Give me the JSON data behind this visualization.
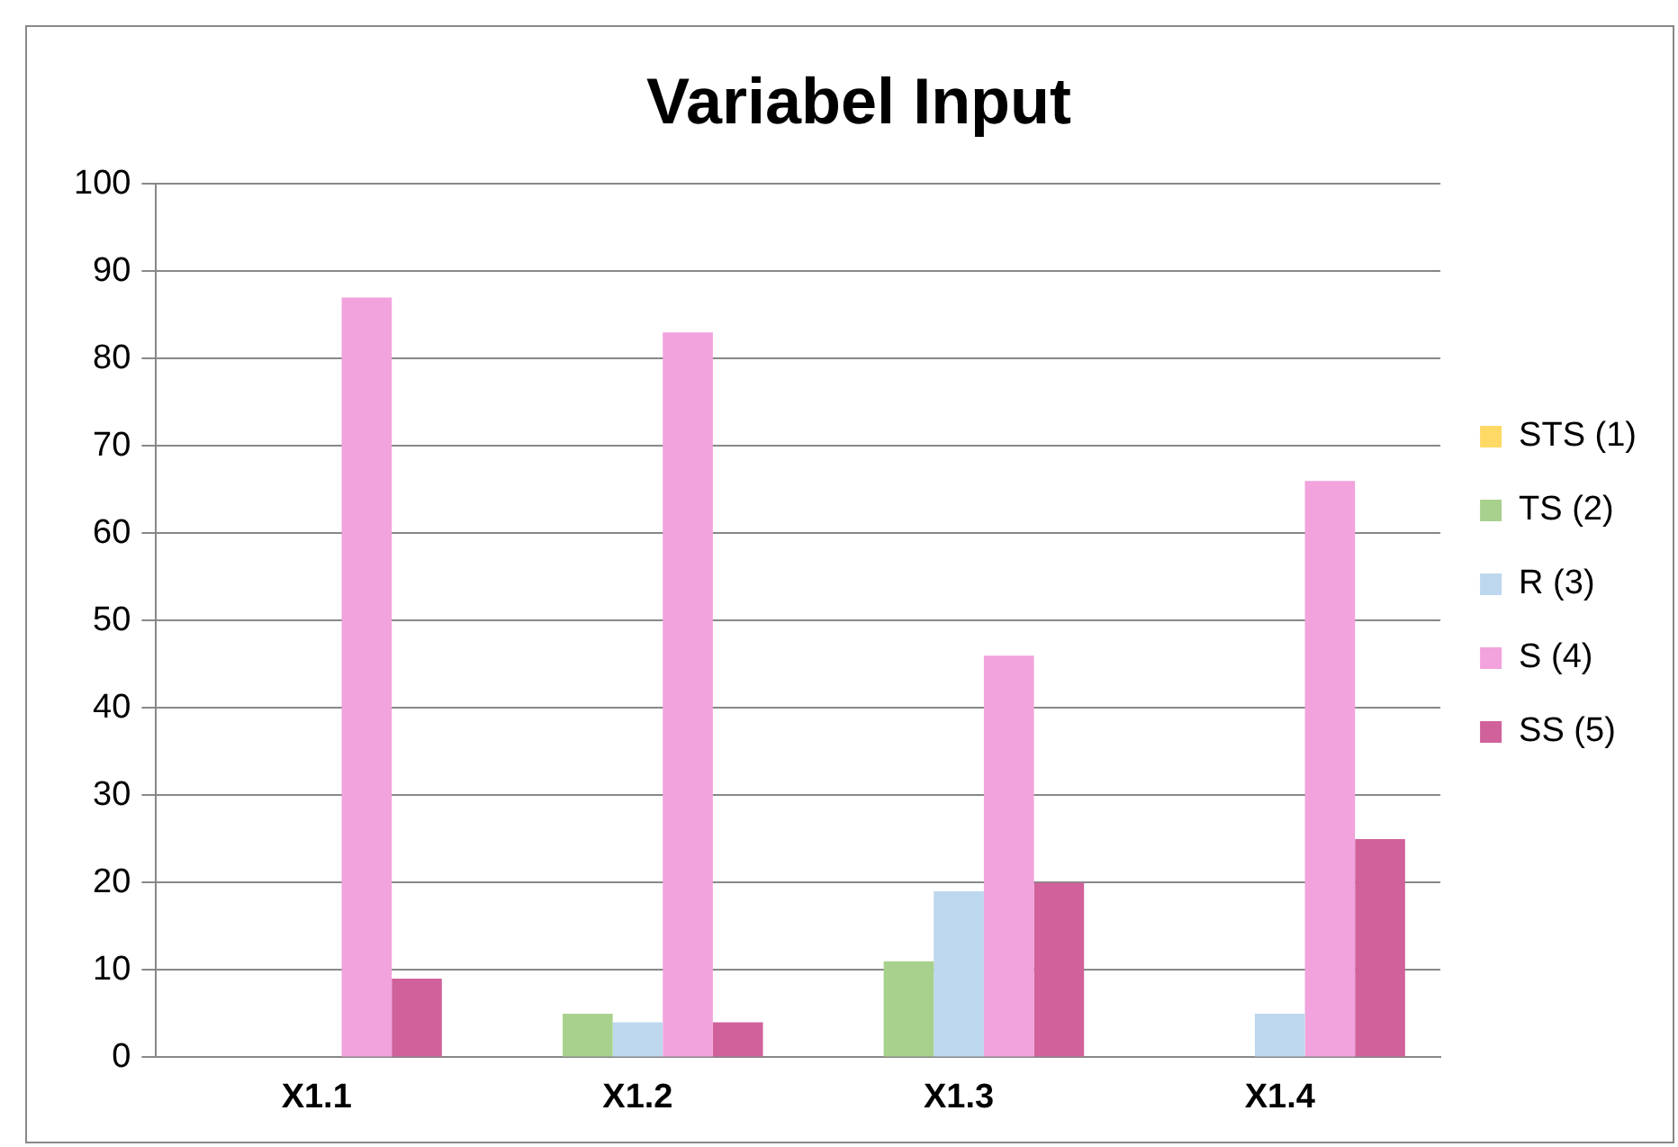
{
  "chart_data": {
    "type": "bar",
    "title": "Variabel Input",
    "categories": [
      "X1.1",
      "X1.2",
      "X1.3",
      "X1.4"
    ],
    "series": [
      {
        "name": "STS (1)",
        "color": "#ffd966",
        "values": [
          0,
          0,
          0,
          0
        ]
      },
      {
        "name": "TS (2)",
        "color": "#a9d18e",
        "values": [
          0,
          5,
          11,
          0
        ]
      },
      {
        "name": "R (3)",
        "color": "#bdd7ee",
        "values": [
          0,
          4,
          19,
          5
        ]
      },
      {
        "name": "S (4)",
        "color": "#f2a2dc",
        "values": [
          87,
          83,
          46,
          66
        ]
      },
      {
        "name": "SS (5)",
        "color": "#d0619b",
        "values": [
          9,
          4,
          20,
          25
        ]
      }
    ],
    "ylim": [
      0,
      100
    ],
    "yticks": [
      0,
      10,
      20,
      30,
      40,
      50,
      60,
      70,
      80,
      90,
      100
    ],
    "grid": "y",
    "legend": "right"
  }
}
